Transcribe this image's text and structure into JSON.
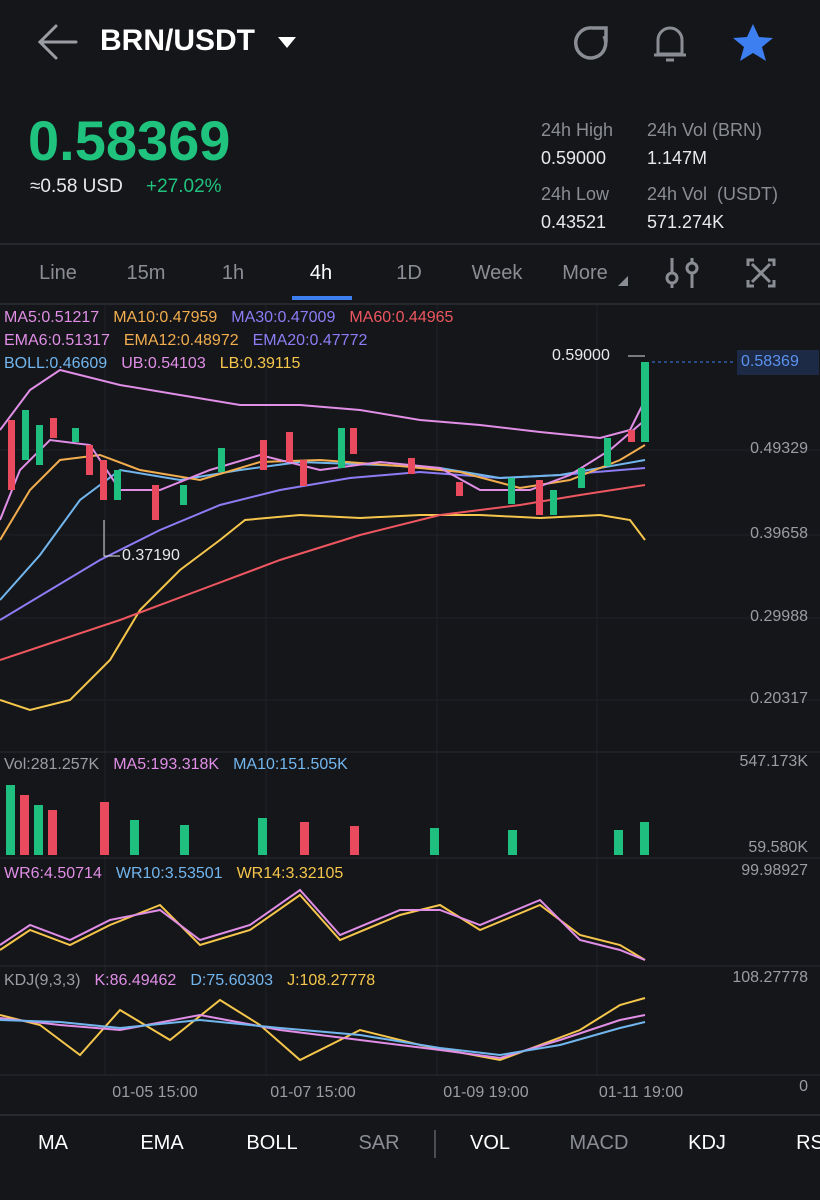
{
  "header": {
    "pair": "BRN/USDT"
  },
  "price": {
    "last": "0.58369",
    "usd": "≈0.58 USD",
    "change": "+27.02%"
  },
  "stats": [
    {
      "label": "24h High",
      "value": "0.59000"
    },
    {
      "label": "24h Vol (BRN)",
      "value": "1.147M"
    },
    {
      "label": "24h Low",
      "value": "0.43521"
    },
    {
      "label": "24h Vol  (USDT)",
      "value": "571.274K"
    }
  ],
  "tabs": {
    "items": [
      "Line",
      "15m",
      "1h",
      "4h",
      "1D",
      "Week",
      "More"
    ],
    "active": 3
  },
  "main_indicators": [
    [
      {
        "text": "MA5:0.51217",
        "color": "#e08ee6"
      },
      {
        "text": "MA10:0.47959",
        "color": "#f2ad4e"
      },
      {
        "text": "MA30:0.47009",
        "color": "#8c7df5"
      },
      {
        "text": "MA60:0.44965",
        "color": "#ee5760"
      }
    ],
    [
      {
        "text": "EMA6:0.51317",
        "color": "#e08ee6"
      },
      {
        "text": "EMA12:0.48972",
        "color": "#f2ad4e"
      },
      {
        "text": "EMA20:0.47772",
        "color": "#8c7df5"
      }
    ],
    [
      {
        "text": "BOLL:0.46609",
        "color": "#72b6ee"
      },
      {
        "text": "UB:0.54103",
        "color": "#e08ee6"
      },
      {
        "text": "LB:0.39115",
        "color": "#f5c64b"
      }
    ]
  ],
  "price_axis": [
    "0.49329",
    "0.39658",
    "0.29988",
    "0.20317"
  ],
  "current_price_tag": "0.58369",
  "annotations": {
    "high": "0.59000",
    "low": "0.37190"
  },
  "volume": {
    "indicators": [
      {
        "text": "Vol:281.257K",
        "color": "#9a9da3"
      },
      {
        "text": "MA5:193.318K",
        "color": "#e08ee6"
      },
      {
        "text": "MA10:151.505K",
        "color": "#72b6ee"
      }
    ],
    "axis": [
      "547.173K",
      "59.580K"
    ]
  },
  "wr": {
    "indicators": [
      {
        "text": "WR6:4.50714",
        "color": "#e08ee6"
      },
      {
        "text": "WR10:3.53501",
        "color": "#72b6ee"
      },
      {
        "text": "WR14:3.32105",
        "color": "#f5c64b"
      }
    ],
    "axis": [
      "99.98927"
    ]
  },
  "kdj": {
    "indicators": [
      {
        "text": "KDJ(9,3,3)",
        "color": "#9a9da3"
      },
      {
        "text": "K:86.49462",
        "color": "#e08ee6"
      },
      {
        "text": "D:75.60303",
        "color": "#72b6ee"
      },
      {
        "text": "J:108.27778",
        "color": "#f5c64b"
      }
    ],
    "axis": [
      "108.27778",
      "0"
    ]
  },
  "time_axis": [
    "01-05 15:00",
    "01-07 15:00",
    "01-09 19:00",
    "01-11 19:00"
  ],
  "bottom_tabs": [
    {
      "label": "MA",
      "active": true
    },
    {
      "label": "EMA",
      "active": true
    },
    {
      "label": "BOLL",
      "active": true
    },
    {
      "label": "SAR",
      "active": false
    },
    {
      "label": "VOL",
      "active": true
    },
    {
      "label": "MACD",
      "active": false
    },
    {
      "label": "KDJ",
      "active": true
    },
    {
      "label": "RS",
      "active": true
    }
  ]
}
